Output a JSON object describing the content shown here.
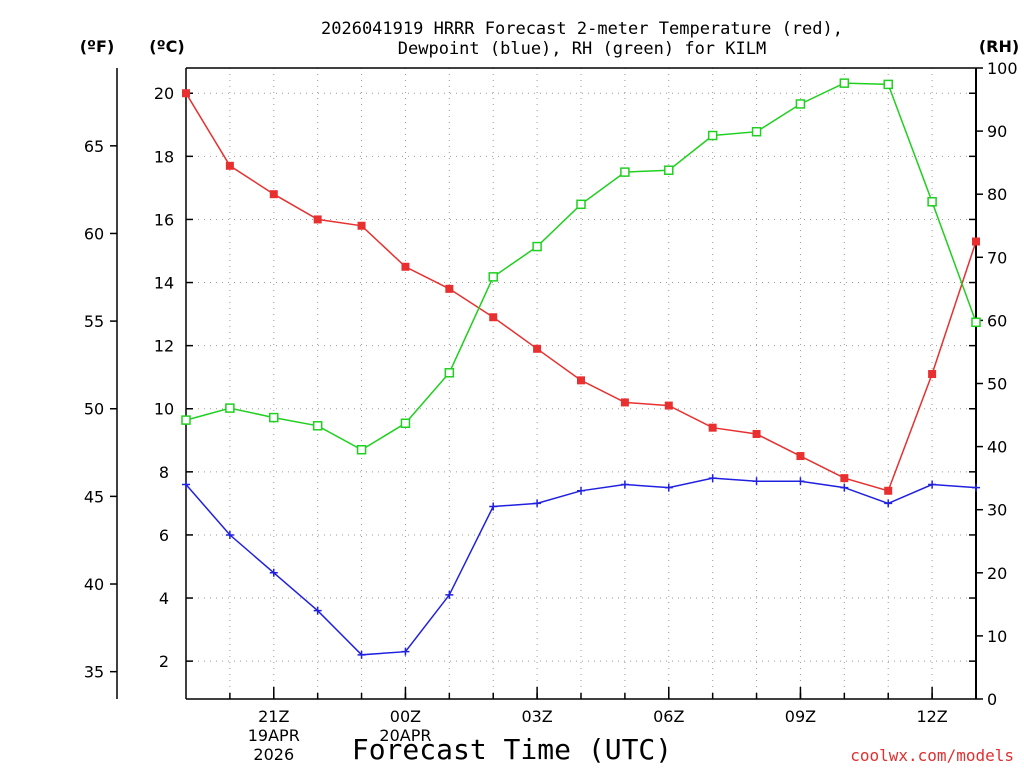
{
  "chart_data": {
    "type": "line",
    "title": [
      "2026041919 HRRR Forecast 2-meter Temperature (red),",
      "Dewpoint (blue), RH (green) for KILM"
    ],
    "xlabel": "Forecast Time (UTC)",
    "units": {
      "fahrenheit": "(ºF)",
      "celsius": "(ºC)",
      "rh": "(RH)"
    },
    "x_tick_labels": [
      {
        "hour": 2,
        "lines": [
          "21Z",
          "19APR",
          "2026"
        ]
      },
      {
        "hour": 5,
        "lines": [
          "00Z",
          "20APR"
        ]
      },
      {
        "hour": 8,
        "lines": [
          "03Z"
        ]
      },
      {
        "hour": 11,
        "lines": [
          "06Z"
        ]
      },
      {
        "hour": 14,
        "lines": [
          "09Z"
        ]
      },
      {
        "hour": 17,
        "lines": [
          "12Z"
        ]
      }
    ],
    "x_range": [
      0,
      18
    ],
    "celsius_range": [
      0.8,
      20.8
    ],
    "celsius_ticks": [
      2,
      4,
      6,
      8,
      10,
      12,
      14,
      16,
      18,
      20
    ],
    "fahrenheit_ticks": [
      35,
      40,
      45,
      50,
      55,
      60,
      65
    ],
    "rh_range": [
      0,
      100
    ],
    "rh_ticks": [
      0,
      10,
      20,
      30,
      40,
      50,
      60,
      70,
      80,
      90,
      100
    ],
    "series": [
      {
        "name": "Temperature",
        "axis": "celsius",
        "color": "#e83030",
        "marker": "filled-square",
        "x": [
          0,
          1,
          2,
          3,
          4,
          5,
          6,
          7,
          8,
          9,
          10,
          11,
          12,
          13,
          14,
          15,
          16,
          17,
          18
        ],
        "values": [
          20.0,
          17.7,
          16.8,
          16.0,
          15.8,
          14.5,
          13.8,
          12.9,
          11.9,
          10.9,
          10.2,
          10.1,
          9.4,
          9.2,
          8.5,
          7.8,
          7.4,
          11.1,
          15.3
        ]
      },
      {
        "name": "Dewpoint",
        "axis": "celsius",
        "color": "#2020e0",
        "marker": "plus",
        "x": [
          0,
          1,
          2,
          3,
          4,
          5,
          6,
          7,
          8,
          9,
          10,
          11,
          12,
          13,
          14,
          15,
          16,
          17,
          18
        ],
        "values": [
          7.6,
          6.0,
          4.8,
          3.6,
          2.2,
          2.3,
          4.1,
          6.9,
          7.0,
          7.4,
          7.6,
          7.5,
          7.8,
          7.7,
          7.7,
          7.5,
          7.0,
          7.6,
          7.5
        ]
      },
      {
        "name": "RH",
        "axis": "rh",
        "color": "#20d020",
        "marker": "open-square",
        "x": [
          0,
          1,
          2,
          3,
          4,
          5,
          6,
          7,
          8,
          9,
          10,
          11,
          12,
          13,
          14,
          15,
          16,
          17,
          18
        ],
        "values": [
          44.2,
          46.1,
          44.6,
          43.3,
          39.5,
          43.7,
          51.7,
          66.9,
          71.7,
          78.4,
          83.5,
          83.8,
          89.3,
          89.9,
          94.3,
          97.6,
          97.4,
          78.8,
          59.7
        ]
      }
    ],
    "grid": true
  },
  "footer": {
    "credit": "coolwx.com/models"
  }
}
